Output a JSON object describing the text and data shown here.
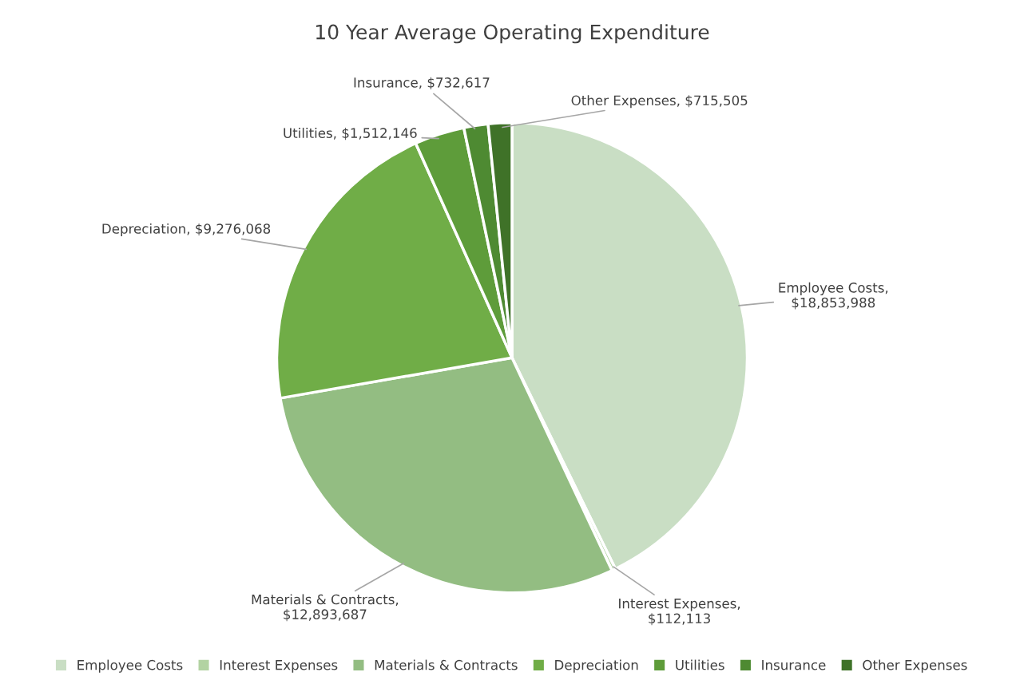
{
  "chart_data": {
    "type": "pie",
    "title": "10 Year Average Operating Expenditure",
    "categories": [
      "Employee Costs",
      "Interest Expenses",
      "Materials & Contracts",
      "Depreciation",
      "Utilities",
      "Insurance",
      "Other Expenses"
    ],
    "values": [
      18853988,
      112113,
      12893687,
      9276068,
      1512146,
      732617,
      715505
    ],
    "value_labels": [
      "Employee Costs, $18,853,988",
      "Interest Expenses, $112,113",
      "Materials & Contracts, $12,893,687",
      "Depreciation, $9,276,068",
      "Utilities, $1,512,146",
      "Insurance, $732,617",
      "Other Expenses, $715,505"
    ],
    "colors": [
      "#c9dec4",
      "#b2d3a2",
      "#93bd82",
      "#70ad47",
      "#5e9c3a",
      "#4e8a32",
      "#3f7228"
    ],
    "legend": "bottom"
  }
}
